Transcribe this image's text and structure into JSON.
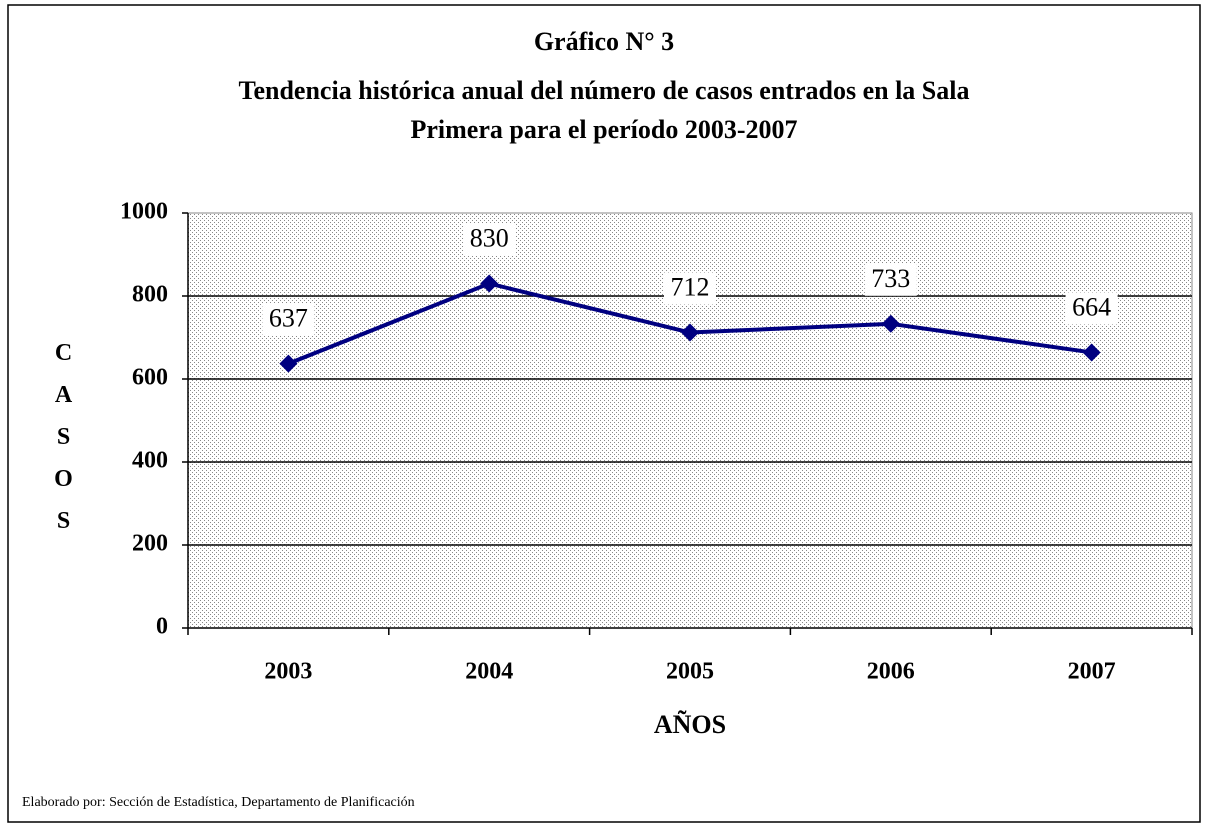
{
  "chart_data": {
    "type": "line",
    "title": "Gráfico N° 3",
    "subtitle": [
      "Tendencia histórica anual del número de casos entrados en la Sala",
      "Primera para el período 2003-2007"
    ],
    "x_label": "AÑOS",
    "y_label": "CASOS",
    "source": "Elaborado por: Sección de Estadística, Departamento de Planificación",
    "categories": [
      "2003",
      "2004",
      "2005",
      "2006",
      "2007"
    ],
    "series": [
      {
        "name": "Casos",
        "color": "#000080",
        "values": [
          637,
          830,
          712,
          733,
          664
        ]
      }
    ],
    "ylim": [
      0,
      1000
    ],
    "yticks": [
      0,
      200,
      400,
      600,
      800,
      1000
    ],
    "grid": true
  }
}
